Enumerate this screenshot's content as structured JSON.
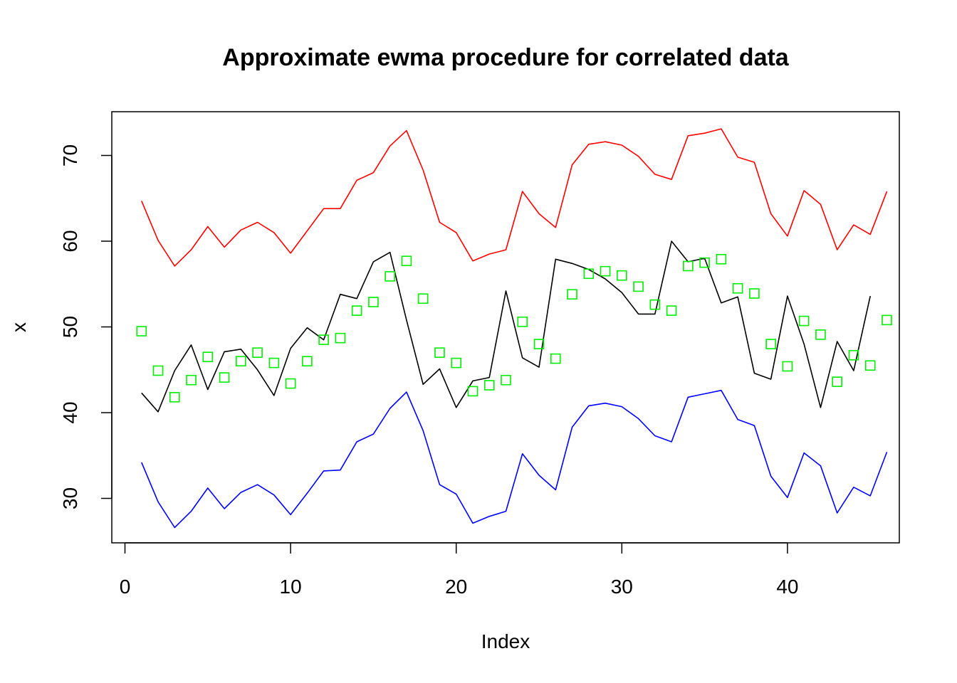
{
  "chart_data": {
    "type": "line",
    "title": "Approximate ewma procedure for correlated data",
    "xlabel": "Index",
    "ylabel": "x",
    "xlim": [
      0,
      46
    ],
    "ylim": [
      25,
      75
    ],
    "xticks": [
      0,
      10,
      20,
      30,
      40
    ],
    "yticks": [
      30,
      40,
      50,
      60,
      70
    ],
    "grid": false,
    "legend": null,
    "x": [
      1,
      2,
      3,
      4,
      5,
      6,
      7,
      8,
      9,
      10,
      11,
      12,
      13,
      14,
      15,
      16,
      17,
      18,
      19,
      20,
      21,
      22,
      23,
      24,
      25,
      26,
      27,
      28,
      29,
      30,
      31,
      32,
      33,
      34,
      35,
      36,
      37,
      38,
      39,
      40,
      41,
      42,
      43,
      44,
      45,
      46
    ],
    "series": [
      {
        "color": "#ff0000",
        "style": "line",
        "x": [
          1,
          2,
          3,
          4,
          5,
          6,
          7,
          8,
          9,
          10,
          11,
          12,
          13,
          14,
          15,
          16,
          17,
          18,
          19,
          20,
          21,
          22,
          23,
          24,
          25,
          26,
          27,
          28,
          29,
          30,
          31,
          32,
          33,
          34,
          35,
          36,
          37,
          38,
          39,
          40,
          41,
          42,
          43,
          44,
          45,
          46
        ],
        "values": [
          64.7,
          60.1,
          57.1,
          59.0,
          61.7,
          59.3,
          61.3,
          62.2,
          61.0,
          58.6,
          61.2,
          63.8,
          63.8,
          67.1,
          68.0,
          71.1,
          72.9,
          68.3,
          62.2,
          61.0,
          57.7,
          58.5,
          59.0,
          65.8,
          63.2,
          61.6,
          68.9,
          71.3,
          71.6,
          71.2,
          69.9,
          67.8,
          67.2,
          72.3,
          72.6,
          73.1,
          69.8,
          69.2,
          63.2,
          60.6,
          65.9,
          64.3,
          59.0,
          61.9,
          60.8,
          65.8
        ]
      },
      {
        "color": "#000000",
        "style": "line",
        "x": [
          1,
          2,
          3,
          4,
          5,
          6,
          7,
          8,
          9,
          10,
          11,
          12,
          13,
          14,
          15,
          16,
          17,
          18,
          19,
          20,
          21,
          22,
          23,
          24,
          25,
          26,
          27,
          28,
          29,
          30,
          31,
          32,
          33,
          34,
          35,
          36,
          37,
          38,
          39,
          40,
          41,
          42,
          43,
          44,
          45
        ],
        "values": [
          42.3,
          40.1,
          44.9,
          47.9,
          42.7,
          47.1,
          47.4,
          45.0,
          42.0,
          47.5,
          49.9,
          48.5,
          53.8,
          53.3,
          57.6,
          58.7,
          50.8,
          43.3,
          45.1,
          40.6,
          43.7,
          44.1,
          54.2,
          46.4,
          45.3,
          57.9,
          57.4,
          56.7,
          55.6,
          54.0,
          51.5,
          51.5,
          60.0,
          57.6,
          58.0,
          52.8,
          53.5,
          44.6,
          43.9,
          53.6,
          48.0,
          40.6,
          48.3,
          44.9,
          53.6
        ]
      },
      {
        "color": "#0000ff",
        "style": "line",
        "x": [
          1,
          2,
          3,
          4,
          5,
          6,
          7,
          8,
          9,
          10,
          11,
          12,
          13,
          14,
          15,
          16,
          17,
          18,
          19,
          20,
          21,
          22,
          23,
          24,
          25,
          26,
          27,
          28,
          29,
          30,
          31,
          32,
          33,
          34,
          35,
          36,
          37,
          38,
          39,
          40,
          41,
          42,
          43,
          44,
          45,
          46
        ],
        "values": [
          34.2,
          29.6,
          26.6,
          28.5,
          31.2,
          28.8,
          30.7,
          31.6,
          30.4,
          28.1,
          30.6,
          33.2,
          33.3,
          36.6,
          37.5,
          40.5,
          42.4,
          37.9,
          31.6,
          30.5,
          27.1,
          27.9,
          28.5,
          35.2,
          32.7,
          31.0,
          38.3,
          40.8,
          41.1,
          40.7,
          39.3,
          37.3,
          36.6,
          41.8,
          42.2,
          42.6,
          39.2,
          38.5,
          32.6,
          30.1,
          35.3,
          33.8,
          28.3,
          31.3,
          30.3,
          35.4
        ]
      },
      {
        "color": "#00ee00",
        "style": "points",
        "marker": "open-square",
        "x": [
          1,
          2,
          3,
          4,
          5,
          6,
          7,
          8,
          9,
          10,
          11,
          12,
          13,
          14,
          15,
          16,
          17,
          18,
          19,
          20,
          21,
          22,
          23,
          24,
          25,
          26,
          27,
          28,
          29,
          30,
          31,
          32,
          33,
          34,
          35,
          36,
          37,
          38,
          39,
          40,
          41,
          42,
          43,
          44,
          45,
          46
        ],
        "values": [
          49.5,
          44.9,
          41.8,
          43.8,
          46.5,
          44.1,
          46.0,
          47.0,
          45.8,
          43.4,
          46.0,
          48.5,
          48.7,
          51.9,
          52.9,
          55.9,
          57.7,
          53.3,
          47.0,
          45.8,
          42.5,
          43.2,
          43.8,
          50.6,
          48.0,
          46.3,
          53.8,
          56.2,
          56.5,
          56.0,
          54.7,
          52.6,
          51.9,
          57.1,
          57.5,
          57.9,
          54.5,
          53.9,
          48.0,
          45.4,
          50.7,
          49.1,
          43.6,
          46.7,
          45.5,
          50.8
        ]
      }
    ]
  }
}
